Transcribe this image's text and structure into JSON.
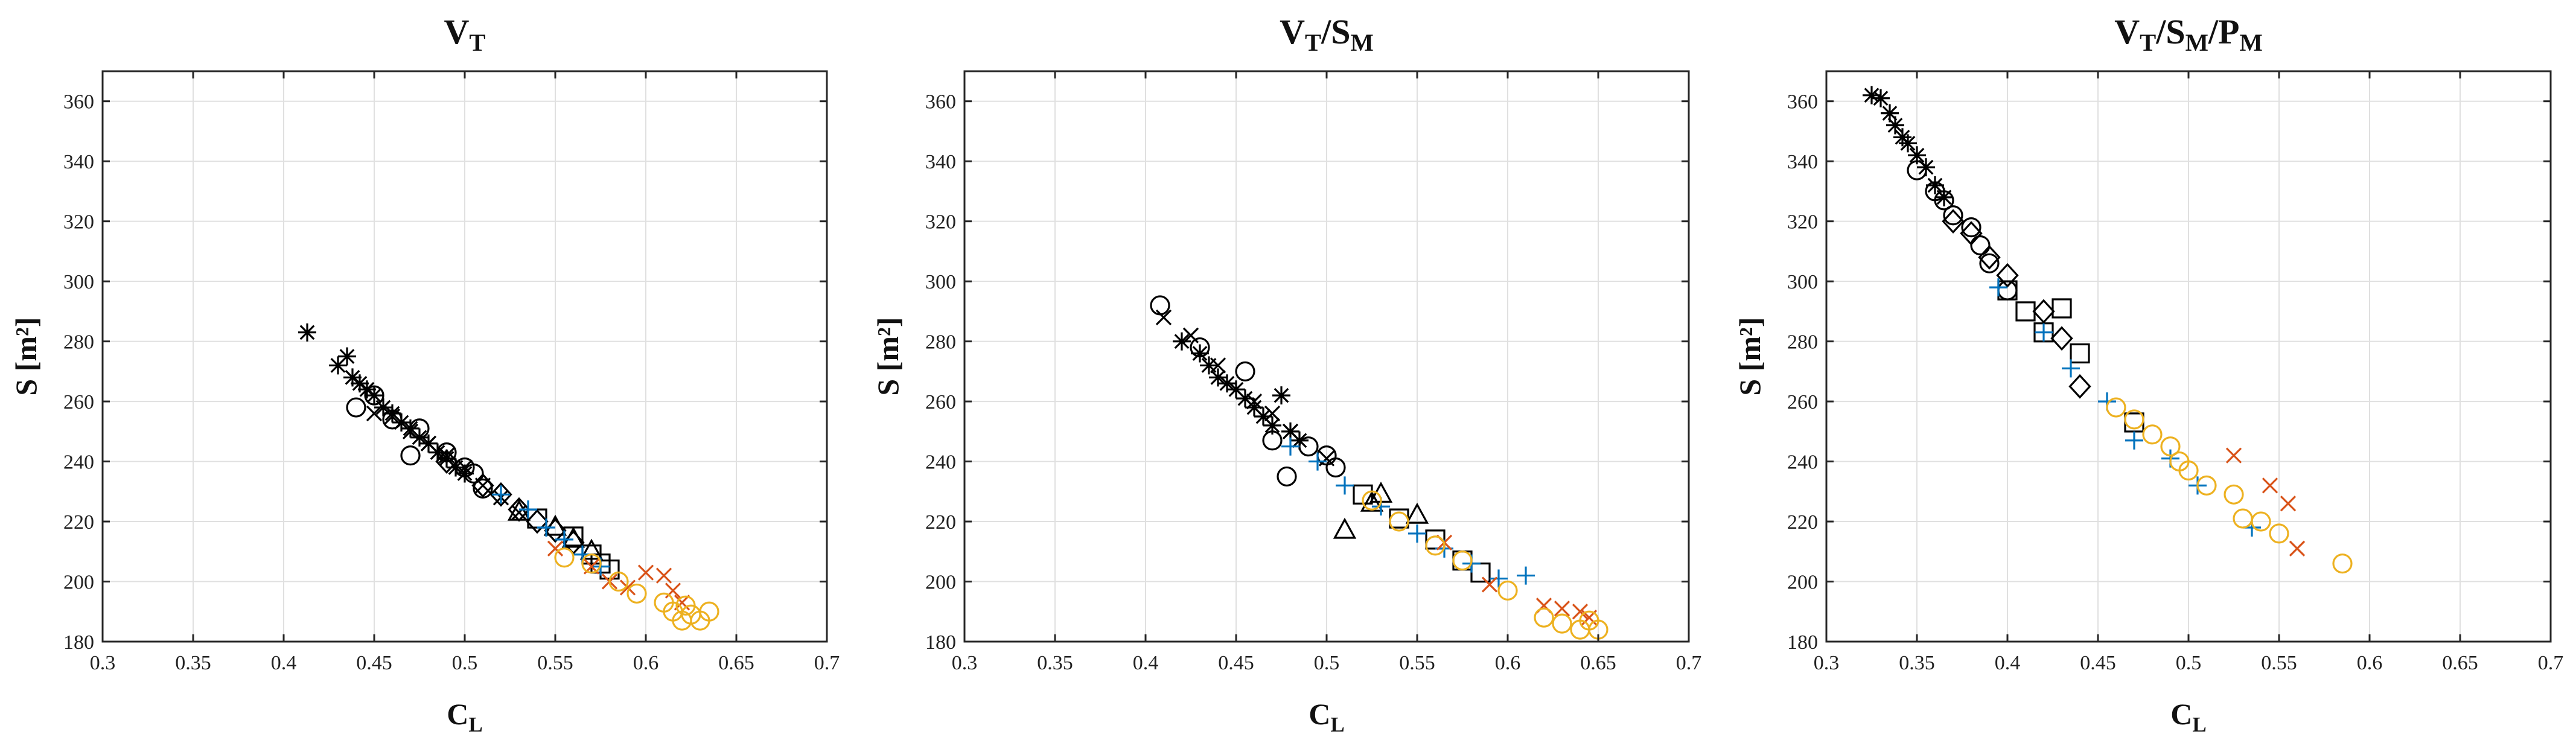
{
  "chart_data": [
    {
      "type": "scatter",
      "title": {
        "base": "V",
        "sub": "T",
        "parts": []
      },
      "xlabel": {
        "base": "C",
        "sub": "L"
      },
      "ylabel": "S [m²]",
      "xlim": [
        0.3,
        0.7
      ],
      "ylim": [
        180,
        370
      ],
      "xticks": [
        "0.3",
        "0.35",
        "0.4",
        "0.45",
        "0.5",
        "0.55",
        "0.6",
        "0.65",
        "0.7"
      ],
      "yticks": [
        "180",
        "200",
        "220",
        "240",
        "260",
        "280",
        "300",
        "320",
        "340",
        "360"
      ],
      "grid": true,
      "series": [
        {
          "name": "asterisk",
          "marker": "asterisk",
          "color": "#000000",
          "x": [
            0.413,
            0.43,
            0.435,
            0.438,
            0.442,
            0.446,
            0.45,
            0.455,
            0.46,
            0.465,
            0.47,
            0.475,
            0.48,
            0.485,
            0.49,
            0.495,
            0.5
          ],
          "y": [
            283,
            272,
            275,
            268,
            266,
            264,
            262,
            258,
            256,
            253,
            251,
            248,
            246,
            243,
            241,
            238,
            236
          ]
        },
        {
          "name": "cross",
          "marker": "cross",
          "color": "#000000",
          "x": [
            0.45,
            0.46,
            0.47,
            0.48,
            0.49,
            0.5,
            0.51,
            0.52,
            0.53
          ],
          "y": [
            256,
            255,
            250,
            246,
            242,
            238,
            232,
            228,
            223
          ]
        },
        {
          "name": "circle",
          "marker": "circle",
          "color": "#000000",
          "x": [
            0.44,
            0.45,
            0.46,
            0.47,
            0.475,
            0.49,
            0.5,
            0.505,
            0.51
          ],
          "y": [
            258,
            262,
            254,
            242,
            251,
            243,
            238,
            236,
            231
          ]
        },
        {
          "name": "diamond",
          "marker": "diamond",
          "color": "#000000",
          "x": [
            0.49,
            0.51,
            0.52,
            0.53,
            0.54,
            0.55,
            0.56
          ],
          "y": [
            240,
            232,
            229,
            224,
            220,
            217,
            213
          ]
        },
        {
          "name": "triangle",
          "marker": "triangle",
          "color": "#000000",
          "x": [
            0.53,
            0.55,
            0.56,
            0.57
          ],
          "y": [
            223,
            218,
            214,
            210
          ]
        },
        {
          "name": "square",
          "marker": "square",
          "color": "#000000",
          "x": [
            0.54,
            0.56,
            0.57,
            0.575,
            0.58
          ],
          "y": [
            221,
            215,
            209,
            206,
            204
          ]
        },
        {
          "name": "plus",
          "marker": "plus",
          "color": "#0072BD",
          "x": [
            0.52,
            0.535,
            0.545,
            0.555,
            0.565,
            0.575
          ],
          "y": [
            229,
            224,
            218,
            214,
            209,
            205
          ]
        },
        {
          "name": "cross-red",
          "marker": "cross",
          "color": "#D95319",
          "x": [
            0.55,
            0.57,
            0.58,
            0.59,
            0.6,
            0.61,
            0.615,
            0.62
          ],
          "y": [
            211,
            205,
            200,
            198,
            203,
            202,
            197,
            193
          ]
        },
        {
          "name": "circle-yellow",
          "marker": "circle",
          "color": "#EDB120",
          "x": [
            0.555,
            0.57,
            0.585,
            0.595,
            0.61,
            0.615,
            0.62,
            0.622,
            0.625,
            0.63,
            0.635
          ],
          "y": [
            208,
            206,
            200,
            196,
            193,
            190,
            187,
            192,
            189,
            187,
            190
          ]
        }
      ]
    },
    {
      "type": "scatter",
      "title": {
        "base": "V",
        "sub": "T",
        "parts": [
          {
            "sep": "/",
            "base": "S",
            "sub": "M"
          }
        ]
      },
      "xlabel": {
        "base": "C",
        "sub": "L"
      },
      "ylabel": "S [m²]",
      "xlim": [
        0.3,
        0.7
      ],
      "ylim": [
        180,
        370
      ],
      "xticks": [
        "0.3",
        "0.35",
        "0.4",
        "0.45",
        "0.5",
        "0.55",
        "0.6",
        "0.65",
        "0.7"
      ],
      "yticks": [
        "180",
        "200",
        "220",
        "240",
        "260",
        "280",
        "300",
        "320",
        "340",
        "360"
      ],
      "grid": true,
      "series": [
        {
          "name": "asterisk",
          "marker": "asterisk",
          "color": "#000000",
          "x": [
            0.42,
            0.43,
            0.435,
            0.44,
            0.445,
            0.45,
            0.455,
            0.46,
            0.465,
            0.47,
            0.475,
            0.48,
            0.485
          ],
          "y": [
            280,
            276,
            272,
            268,
            266,
            264,
            261,
            258,
            255,
            252,
            262,
            250,
            247
          ]
        },
        {
          "name": "cross",
          "marker": "cross",
          "color": "#000000",
          "x": [
            0.41,
            0.425,
            0.44,
            0.46,
            0.47,
            0.48,
            0.5
          ],
          "y": [
            288,
            282,
            272,
            260,
            256,
            250,
            241
          ]
        },
        {
          "name": "circle",
          "marker": "circle",
          "color": "#000000",
          "x": [
            0.408,
            0.43,
            0.455,
            0.47,
            0.478,
            0.49,
            0.5,
            0.505
          ],
          "y": [
            292,
            278,
            270,
            247,
            235,
            245,
            242,
            238
          ]
        },
        {
          "name": "triangle",
          "marker": "triangle",
          "color": "#000000",
          "x": [
            0.51,
            0.525,
            0.53,
            0.55
          ],
          "y": [
            217,
            226,
            229,
            222
          ]
        },
        {
          "name": "square",
          "marker": "square",
          "color": "#000000",
          "x": [
            0.52,
            0.54,
            0.56,
            0.575,
            0.585
          ],
          "y": [
            229,
            221,
            214,
            207,
            203
          ]
        },
        {
          "name": "plus",
          "marker": "plus",
          "color": "#0072BD",
          "x": [
            0.48,
            0.495,
            0.51,
            0.53,
            0.55,
            0.565,
            0.58,
            0.595,
            0.61
          ],
          "y": [
            245,
            240,
            232,
            225,
            216,
            211,
            206,
            201,
            202
          ]
        },
        {
          "name": "cross-red",
          "marker": "cross",
          "color": "#D95319",
          "x": [
            0.565,
            0.59,
            0.62,
            0.63,
            0.64,
            0.645
          ],
          "y": [
            213,
            199,
            192,
            191,
            190,
            188
          ]
        },
        {
          "name": "circle-yellow",
          "marker": "circle",
          "color": "#EDB120",
          "x": [
            0.525,
            0.54,
            0.56,
            0.575,
            0.6,
            0.62,
            0.63,
            0.64,
            0.645,
            0.65
          ],
          "y": [
            227,
            220,
            212,
            207,
            197,
            188,
            186,
            184,
            187,
            184
          ]
        }
      ]
    },
    {
      "type": "scatter",
      "title": {
        "base": "V",
        "sub": "T",
        "parts": [
          {
            "sep": "/",
            "base": "S",
            "sub": "M"
          },
          {
            "sep": "/",
            "base": "P",
            "sub": "M"
          }
        ]
      },
      "xlabel": {
        "base": "C",
        "sub": "L"
      },
      "ylabel": "S [m²]",
      "xlim": [
        0.3,
        0.7
      ],
      "ylim": [
        180,
        370
      ],
      "xticks": [
        "0.3",
        "0.35",
        "0.4",
        "0.45",
        "0.5",
        "0.55",
        "0.6",
        "0.65",
        "0.7"
      ],
      "yticks": [
        "180",
        "200",
        "220",
        "240",
        "260",
        "280",
        "300",
        "320",
        "340",
        "360"
      ],
      "grid": true,
      "series": [
        {
          "name": "asterisk",
          "marker": "asterisk",
          "color": "#000000",
          "x": [
            0.325,
            0.33,
            0.335,
            0.338,
            0.342,
            0.345,
            0.35,
            0.355,
            0.36,
            0.365
          ],
          "y": [
            362,
            361,
            356,
            352,
            348,
            346,
            342,
            338,
            332,
            328
          ]
        },
        {
          "name": "circle",
          "marker": "circle",
          "color": "#000000",
          "x": [
            0.35,
            0.36,
            0.365,
            0.37,
            0.38,
            0.385,
            0.39,
            0.4
          ],
          "y": [
            337,
            330,
            327,
            322,
            318,
            312,
            306,
            297
          ]
        },
        {
          "name": "diamond",
          "marker": "diamond",
          "color": "#000000",
          "x": [
            0.37,
            0.38,
            0.39,
            0.4,
            0.42,
            0.43,
            0.44
          ],
          "y": [
            320,
            316,
            308,
            302,
            290,
            281,
            265
          ]
        },
        {
          "name": "square",
          "marker": "square",
          "color": "#000000",
          "x": [
            0.4,
            0.41,
            0.42,
            0.43,
            0.44,
            0.47
          ],
          "y": [
            297,
            290,
            283,
            291,
            276,
            253
          ]
        },
        {
          "name": "plus",
          "marker": "plus",
          "color": "#0072BD",
          "x": [
            0.395,
            0.42,
            0.435,
            0.455,
            0.47,
            0.49,
            0.505,
            0.535
          ],
          "y": [
            298,
            283,
            271,
            260,
            247,
            241,
            232,
            218
          ]
        },
        {
          "name": "cross-red",
          "marker": "cross",
          "color": "#D95319",
          "x": [
            0.525,
            0.545,
            0.555,
            0.56
          ],
          "y": [
            242,
            232,
            226,
            211
          ]
        },
        {
          "name": "circle-yellow",
          "marker": "circle",
          "color": "#EDB120",
          "x": [
            0.46,
            0.47,
            0.48,
            0.49,
            0.495,
            0.5,
            0.51,
            0.525,
            0.53,
            0.54,
            0.55,
            0.585
          ],
          "y": [
            258,
            254,
            249,
            245,
            240,
            237,
            232,
            229,
            221,
            220,
            216,
            206
          ]
        }
      ]
    }
  ]
}
